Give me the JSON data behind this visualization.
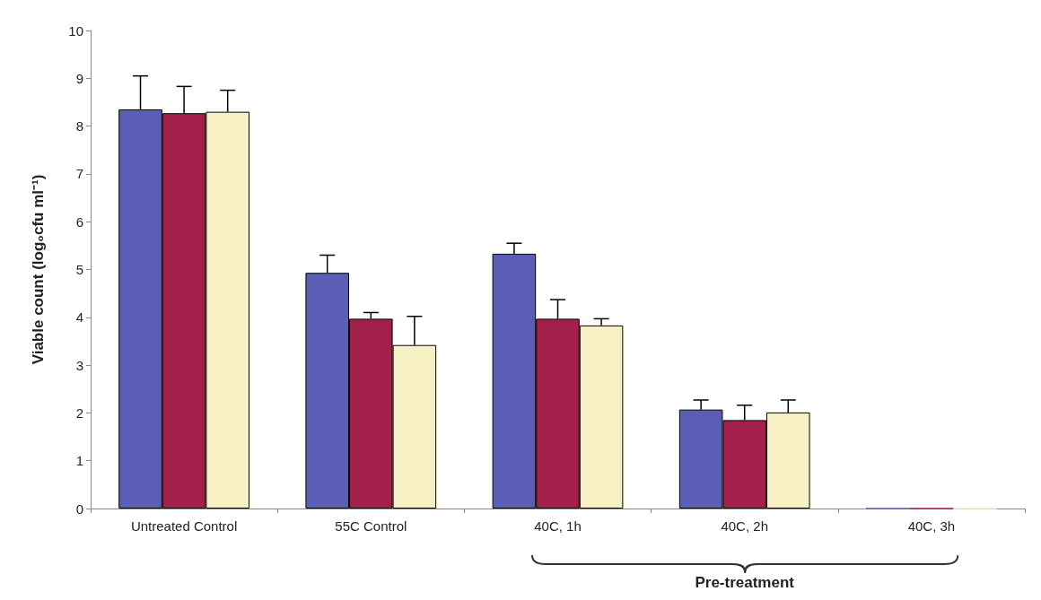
{
  "chart_data": {
    "type": "bar",
    "ylabel": "Viable count (log₀cfu ml⁻¹)",
    "categories": [
      "Untreated Control",
      "55C Control",
      "40C, 1h",
      "40C, 2h",
      "40C, 3h"
    ],
    "series": [
      {
        "color": "#5a5fb5",
        "values": [
          8.35,
          4.93,
          5.33,
          2.07,
          0
        ],
        "errors": [
          [
            8.35,
            9.05
          ],
          [
            4.93,
            5.3
          ],
          [
            5.33,
            5.55
          ],
          [
            2.07,
            2.27
          ],
          null
        ]
      },
      {
        "color": "#a3204a",
        "values": [
          8.27,
          3.97,
          3.97,
          1.85,
          0
        ],
        "errors": [
          [
            8.27,
            8.83
          ],
          [
            3.97,
            4.1
          ],
          [
            3.97,
            4.37
          ],
          [
            1.85,
            2.16
          ],
          null
        ]
      },
      {
        "color": "#f7f0c4",
        "values": [
          8.3,
          3.42,
          3.83,
          2.01,
          0
        ],
        "errors": [
          [
            8.3,
            8.75
          ],
          [
            3.42,
            4.02
          ],
          [
            3.83,
            3.97
          ],
          [
            2.01,
            2.27
          ],
          null
        ]
      }
    ],
    "ylim": [
      0,
      10
    ],
    "yticks": [
      0,
      1,
      2,
      3,
      4,
      5,
      6,
      7,
      8,
      9,
      10
    ],
    "grid": false,
    "annotations": [
      "Pre-treatment"
    ]
  }
}
